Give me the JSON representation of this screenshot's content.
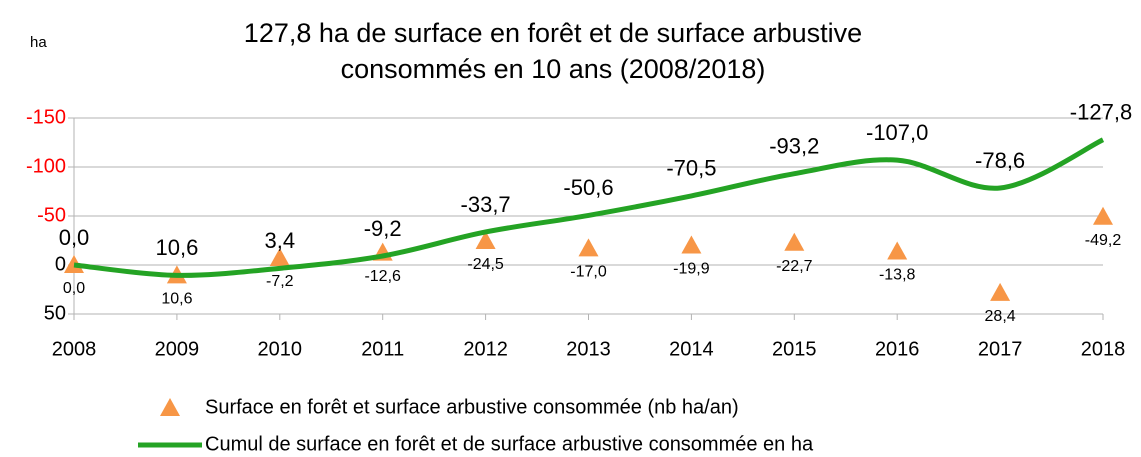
{
  "chart_data": {
    "type": "line-scatter",
    "title": [
      "127,8 ha de surface en forêt et de surface arbustive",
      "consommés en 10 ans (2008/2018)"
    ],
    "y_label": "ha",
    "categories": [
      "2008",
      "2009",
      "2010",
      "2011",
      "2012",
      "2013",
      "2014",
      "2015",
      "2016",
      "2017",
      "2018"
    ],
    "ylim": [
      -150,
      50
    ],
    "y_inverted": true,
    "yticks": [
      -150,
      -100,
      -50,
      0,
      50
    ],
    "ytick_colors": [
      "#ff0000",
      "#ff0000",
      "#ff0000",
      "#000000",
      "#000000"
    ],
    "grid": true,
    "series": [
      {
        "name": "Surface en forêt et surface arbustive consommée (nb ha/an)",
        "color": "#f79646",
        "marker": "triangle",
        "values": [
          0.0,
          10.6,
          -7.2,
          -12.6,
          -24.5,
          -17.0,
          -19.9,
          -22.7,
          -13.8,
          28.4,
          -49.2
        ],
        "value_labels": [
          "0,0",
          "10,6",
          "-7,2",
          "-12,6",
          "-24,5",
          "-17,0",
          "-19,9",
          "-22,7",
          "-13,8",
          "28,4",
          "-49,2"
        ]
      },
      {
        "name": "Cumul de surface en forêt et de surface arbustive consommée en ha",
        "color": "#24a324",
        "marker": "line",
        "smooth": true,
        "values": [
          0.0,
          10.6,
          3.4,
          -9.2,
          -33.7,
          -50.6,
          -70.5,
          -93.2,
          -107.0,
          -78.6,
          -127.8
        ],
        "value_labels": [
          "0,0",
          "10,6",
          "3,4",
          "-9,2",
          "-33,7",
          "-50,6",
          "-70,5",
          "-93,2",
          "-107,0",
          "-78,6",
          "-127,8"
        ]
      }
    ]
  }
}
